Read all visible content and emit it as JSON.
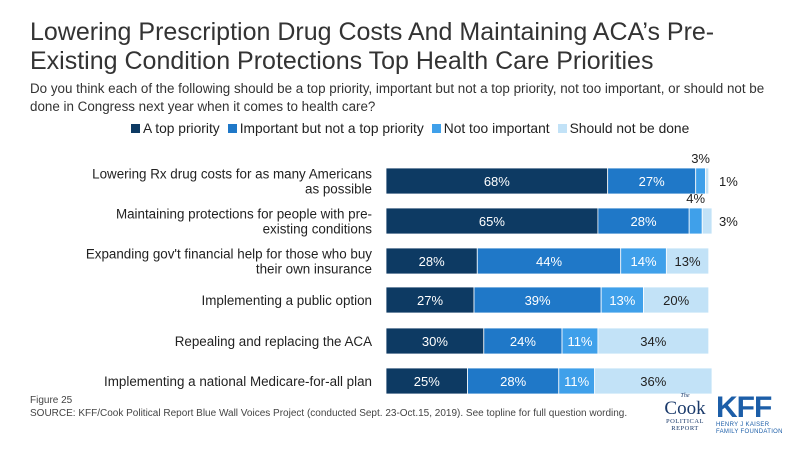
{
  "title": "Lowering Prescription Drug Costs And Maintaining ACA’s Pre-Existing Condition Protections Top Health Care Priorities",
  "subtitle": "Do you think each of the following should be a top priority, important but not a top priority, not too important, or should not be done in Congress next year when it comes to health care?",
  "footer": {
    "figure": "Figure 25",
    "source": "SOURCE: KFF/Cook Political Report Blue Wall Voices Project (conducted Sept. 23-Oct.15, 2019). See topline for full question wording."
  },
  "logos": {
    "cook": {
      "the": "The",
      "name": "Cook",
      "sub": "POLITICAL REPORT"
    },
    "kff": {
      "mark": "KFF",
      "sub": "HENRY J KAISER FAMILY FOUNDATION"
    }
  },
  "colors": {
    "top_priority": "#0d3a63",
    "important": "#1f78c8",
    "not_too_important": "#3fa0ea",
    "should_not_be_done": "#c2e2f7"
  },
  "chart_data": {
    "type": "bar",
    "orientation": "horizontal",
    "stacked": true,
    "xlim": [
      0,
      100
    ],
    "unit": "%",
    "grid": false,
    "legend_position": "top",
    "categories": [
      "Lowering Rx drug costs for as many Americans as possible",
      "Maintaining protections for people with pre-existing conditions",
      "Expanding gov't financial help for those who buy their own insurance",
      "Implementing a public option",
      "Repealing and replacing the ACA",
      "Implementing a national Medicare-for-all plan"
    ],
    "series": [
      {
        "name": "A top priority",
        "color": "#0d3a63",
        "label_color": "#ffffff",
        "values": [
          68,
          65,
          28,
          27,
          30,
          25
        ]
      },
      {
        "name": "Important but not a top priority",
        "color": "#1f78c8",
        "label_color": "#ffffff",
        "values": [
          27,
          28,
          44,
          39,
          24,
          28
        ]
      },
      {
        "name": "Not too important",
        "color": "#3fa0ea",
        "label_color": "#ffffff",
        "values": [
          3,
          4,
          14,
          13,
          11,
          11
        ]
      },
      {
        "name": "Should not be done",
        "color": "#c2e2f7",
        "label_color": "#222222",
        "values": [
          1,
          3,
          13,
          20,
          34,
          36
        ]
      }
    ]
  }
}
